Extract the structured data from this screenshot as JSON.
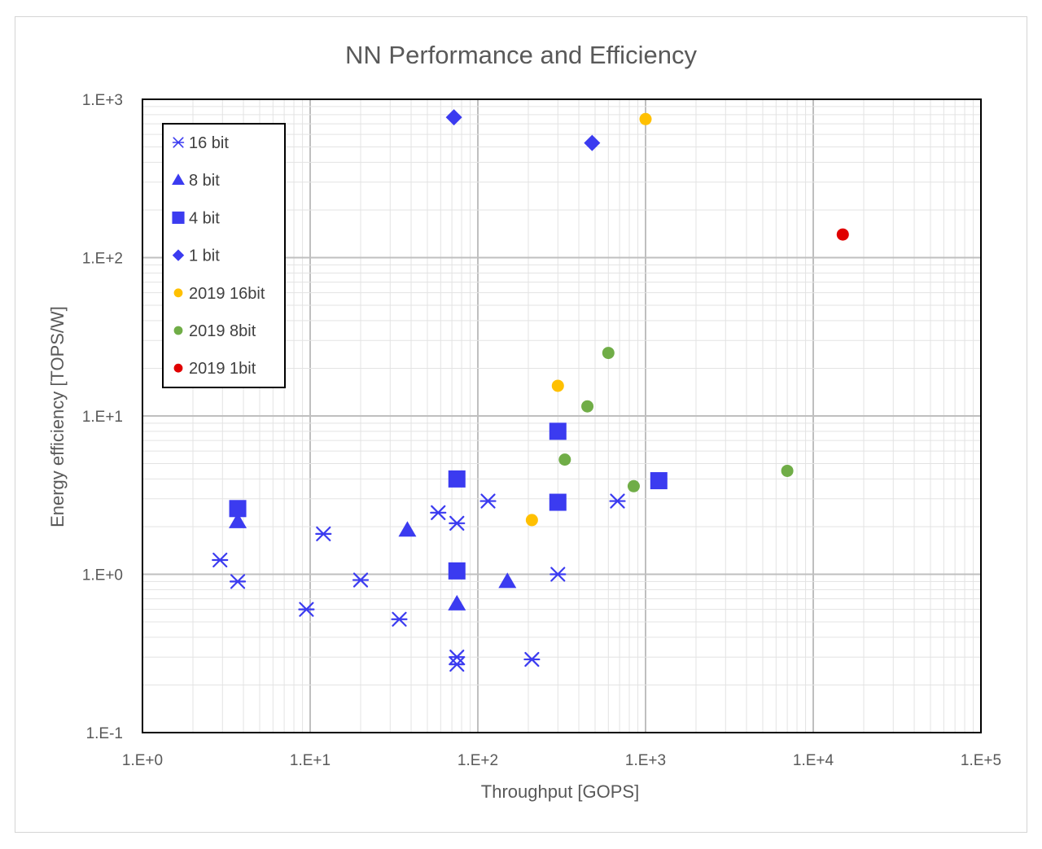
{
  "chart_data": {
    "type": "scatter",
    "title": "NN Performance  and Efficiency",
    "xlabel": "Throughput [GOPS]",
    "ylabel": "Energy efficiency [TOPS/W]",
    "x_scale": "log",
    "y_scale": "log",
    "xlim": [
      1,
      100000
    ],
    "ylim": [
      0.1,
      1000
    ],
    "x_ticks": [
      {
        "value": 1,
        "label": "1.E+0"
      },
      {
        "value": 10,
        "label": "1.E+1"
      },
      {
        "value": 100,
        "label": "1.E+2"
      },
      {
        "value": 1000,
        "label": "1.E+3"
      },
      {
        "value": 10000,
        "label": "1.E+4"
      },
      {
        "value": 100000,
        "label": "1.E+5"
      }
    ],
    "y_ticks": [
      {
        "value": 0.1,
        "label": "1.E-1"
      },
      {
        "value": 1,
        "label": "1.E+0"
      },
      {
        "value": 10,
        "label": "1.E+1"
      },
      {
        "value": 100,
        "label": "1.E+2"
      },
      {
        "value": 1000,
        "label": "1.E+3"
      }
    ],
    "grid": true,
    "legend_position": "top-left",
    "series": [
      {
        "name": "16 bit",
        "marker": "asterisk",
        "color": "#3b3bf0",
        "points": [
          {
            "x": 2.9,
            "y": 1.23
          },
          {
            "x": 3.7,
            "y": 0.9
          },
          {
            "x": 9.5,
            "y": 0.6
          },
          {
            "x": 12,
            "y": 1.8
          },
          {
            "x": 20,
            "y": 0.92
          },
          {
            "x": 34,
            "y": 0.52
          },
          {
            "x": 58,
            "y": 2.45
          },
          {
            "x": 75,
            "y": 2.1
          },
          {
            "x": 75,
            "y": 0.3
          },
          {
            "x": 75,
            "y": 0.27
          },
          {
            "x": 115,
            "y": 2.9
          },
          {
            "x": 210,
            "y": 0.29
          },
          {
            "x": 300,
            "y": 1.0
          },
          {
            "x": 680,
            "y": 2.9
          }
        ]
      },
      {
        "name": "8 bit",
        "marker": "triangle",
        "color": "#3b3bf0",
        "points": [
          {
            "x": 3.7,
            "y": 2.15
          },
          {
            "x": 38,
            "y": 1.9
          },
          {
            "x": 75,
            "y": 0.65
          },
          {
            "x": 150,
            "y": 0.9
          }
        ]
      },
      {
        "name": "4 bit",
        "marker": "square",
        "color": "#3b3bf0",
        "points": [
          {
            "x": 3.7,
            "y": 2.6
          },
          {
            "x": 75,
            "y": 4.0
          },
          {
            "x": 75,
            "y": 1.05
          },
          {
            "x": 300,
            "y": 8.0
          },
          {
            "x": 300,
            "y": 2.85
          },
          {
            "x": 1200,
            "y": 3.9
          }
        ]
      },
      {
        "name": "1 bit",
        "marker": "diamond",
        "color": "#3b3bf0",
        "points": [
          {
            "x": 72,
            "y": 770
          },
          {
            "x": 480,
            "y": 530
          }
        ]
      },
      {
        "name": "2019 16bit",
        "marker": "circle",
        "color": "#ffc000",
        "points": [
          {
            "x": 1000,
            "y": 750
          },
          {
            "x": 300,
            "y": 15.5
          },
          {
            "x": 210,
            "y": 2.2
          }
        ]
      },
      {
        "name": "2019 8bit",
        "marker": "circle",
        "color": "#70ad47",
        "points": [
          {
            "x": 600,
            "y": 25
          },
          {
            "x": 450,
            "y": 11.5
          },
          {
            "x": 330,
            "y": 5.3
          },
          {
            "x": 850,
            "y": 3.6
          },
          {
            "x": 7000,
            "y": 4.5
          }
        ]
      },
      {
        "name": "2019 1bit",
        "marker": "circle",
        "color": "#e00000",
        "points": [
          {
            "x": 15000,
            "y": 140
          }
        ]
      }
    ]
  }
}
